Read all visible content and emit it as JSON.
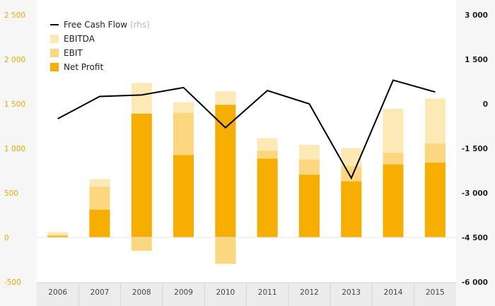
{
  "chart_data": {
    "type": "bar",
    "categories": [
      "2006",
      "2007",
      "2008",
      "2009",
      "2010",
      "2011",
      "2012",
      "2013",
      "2014",
      "2015"
    ],
    "series": [
      {
        "name": "EBITDA",
        "axis": "left",
        "color": "#fde9b6",
        "values": [
          60,
          655,
          1735,
          1520,
          1640,
          1115,
          1040,
          1005,
          1445,
          1560
        ]
      },
      {
        "name": "EBIT",
        "axis": "left",
        "color": "#fdd680",
        "values": [
          30,
          570,
          -150,
          1400,
          -295,
          975,
          875,
          800,
          950,
          1055
        ]
      },
      {
        "name": "Net Profit",
        "axis": "left",
        "color": "#f6ae00",
        "values": [
          15,
          310,
          1390,
          925,
          1490,
          885,
          705,
          630,
          820,
          840
        ]
      },
      {
        "name": "Free Cash Flow",
        "axis": "right",
        "type": "line",
        "color": "#000000",
        "values": [
          -500,
          250,
          300,
          550,
          -800,
          450,
          0,
          -2500,
          800,
          400
        ]
      }
    ],
    "legend": {
      "items": [
        "Free Cash Flow",
        "EBITDA",
        "EBIT",
        "Net Profit"
      ],
      "rhs_suffix": "(rhs)",
      "placement": "top-left"
    },
    "y_left": {
      "range": [
        -500,
        2500
      ],
      "ticks": [
        2500,
        2000,
        1500,
        1000,
        500,
        0,
        -500
      ],
      "tick_labels": [
        "2 500",
        "2 000",
        "1 500",
        "1 000",
        "500",
        "0",
        "-500"
      ],
      "color": "#f2a900"
    },
    "y_right": {
      "range": [
        -6000,
        3000
      ],
      "ticks": [
        3000,
        1500,
        0,
        -1500,
        -3000,
        -4500,
        -6000
      ],
      "tick_labels": [
        "3 000",
        "1 500",
        "0",
        "-1 500",
        "-3 000",
        "-4 500",
        "-6 000"
      ]
    },
    "grid": false
  }
}
